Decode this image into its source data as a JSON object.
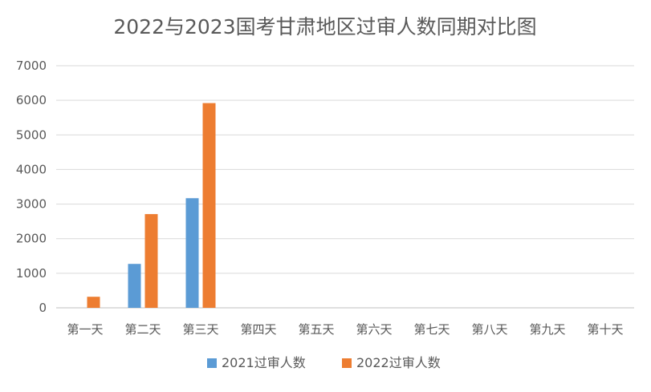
{
  "chart_data": {
    "type": "bar",
    "title": "2022与2023国考甘肃地区过审人数同期对比图",
    "xlabel": "",
    "ylabel": "",
    "categories": [
      "第一天",
      "第二天",
      "第三天",
      "第四天",
      "第五天",
      "第六天",
      "第七天",
      "第八天",
      "第九天",
      "第十天"
    ],
    "series": [
      {
        "name": "2021过审人数",
        "color": "#5b9bd5",
        "values": [
          null,
          1270,
          3170,
          null,
          null,
          null,
          null,
          null,
          null,
          null
        ]
      },
      {
        "name": "2022过审人数",
        "color": "#ed7d31",
        "values": [
          320,
          2710,
          5920,
          null,
          null,
          null,
          null,
          null,
          null,
          null
        ]
      }
    ],
    "ylim": [
      0,
      7000
    ],
    "yticks": [
      0,
      1000,
      2000,
      3000,
      4000,
      5000,
      6000,
      7000
    ],
    "grid": true,
    "legend_position": "bottom"
  }
}
